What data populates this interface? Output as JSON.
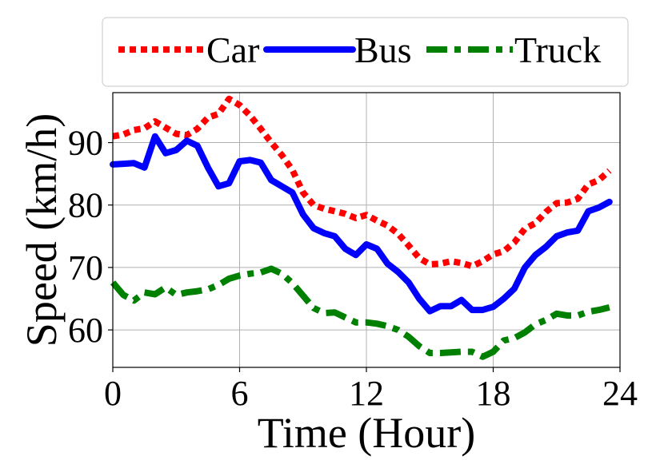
{
  "chart_data": {
    "type": "line",
    "xlabel": "Time (Hour)",
    "ylabel": "Speed (km/h)",
    "xlim": [
      0,
      24
    ],
    "ylim": [
      54,
      98
    ],
    "x_ticks": [
      "0",
      "6",
      "12",
      "18",
      "24"
    ],
    "y_ticks": [
      "60",
      "70",
      "80",
      "90"
    ],
    "grid": true,
    "legend_position": "top",
    "series": [
      {
        "name": "Car",
        "color": "#ff0000",
        "style": "dotted",
        "x": [
          0,
          0.5,
          1,
          1.5,
          2,
          2.5,
          3,
          3.5,
          4,
          4.5,
          5,
          5.5,
          6,
          6.5,
          7,
          7.5,
          8,
          8.5,
          9,
          9.5,
          10,
          10.5,
          11,
          11.5,
          12,
          12.5,
          13,
          13.5,
          14,
          14.5,
          15,
          15.5,
          16,
          16.5,
          17,
          17.5,
          18,
          18.5,
          19,
          19.5,
          20,
          20.5,
          21,
          21.5,
          22,
          22.5,
          23,
          23.5
        ],
        "values": [
          91,
          91.3,
          92,
          92.3,
          93.4,
          92.4,
          91.4,
          91.2,
          92.2,
          94,
          94.6,
          97,
          96,
          94.3,
          92.2,
          90,
          88,
          85.6,
          82,
          80,
          79.4,
          79,
          78.6,
          77.9,
          78.4,
          77.5,
          76.7,
          75.4,
          73.5,
          71.5,
          70.5,
          70.6,
          71,
          70.7,
          70.2,
          71,
          72.1,
          72.6,
          74,
          76.2,
          77.1,
          78.9,
          80.3,
          80.4,
          81,
          83.3,
          84,
          85.5
        ]
      },
      {
        "name": "Bus",
        "color": "#0000ff",
        "style": "solid",
        "x": [
          0,
          0.5,
          1,
          1.5,
          2,
          2.5,
          3,
          3.5,
          4,
          4.5,
          5,
          5.5,
          6,
          6.5,
          7,
          7.5,
          8,
          8.5,
          9,
          9.5,
          10,
          10.5,
          11,
          11.5,
          12,
          12.5,
          13,
          13.5,
          14,
          14.5,
          15,
          15.5,
          16,
          16.5,
          17,
          17.5,
          18,
          18.5,
          19,
          19.5,
          20,
          20.5,
          21,
          21.5,
          22,
          22.5,
          23,
          23.5
        ],
        "values": [
          86.5,
          86.6,
          86.7,
          86,
          91,
          88.3,
          88.8,
          90.3,
          89.5,
          86,
          83,
          83.5,
          87,
          87.2,
          86.8,
          84,
          83,
          82,
          78.5,
          76.3,
          75.5,
          75,
          73,
          72,
          73.7,
          73,
          70.6,
          69.3,
          67.6,
          65,
          63,
          63.8,
          63.8,
          64.8,
          63.2,
          63.2,
          63.7,
          65,
          66.6,
          70,
          72,
          73.3,
          75,
          75.6,
          75.9,
          79,
          79.6,
          80.5
        ]
      },
      {
        "name": "Truck",
        "color": "#008000",
        "style": "dashdot",
        "x": [
          0,
          0.5,
          1,
          1.5,
          2,
          2.5,
          3,
          3.5,
          4,
          4.5,
          5,
          5.5,
          6,
          6.5,
          7,
          7.5,
          8,
          8.5,
          9,
          9.5,
          10,
          10.5,
          11,
          11.5,
          12,
          12.5,
          13,
          13.5,
          14,
          14.5,
          15,
          15.5,
          16,
          16.5,
          17,
          17.5,
          18,
          18.5,
          19,
          19.5,
          20,
          20.5,
          21,
          21.5,
          22,
          22.5,
          23,
          23.5
        ],
        "values": [
          67.6,
          65.6,
          64.7,
          66,
          65.7,
          66.8,
          65.6,
          66,
          66.2,
          66.5,
          67.2,
          68.2,
          68.7,
          69,
          69.2,
          69.8,
          69,
          67.5,
          65.5,
          63.5,
          62.7,
          62.8,
          62,
          61.2,
          61.2,
          61,
          60.6,
          60,
          58.9,
          57.4,
          56.3,
          56.3,
          56.4,
          56.5,
          56.5,
          55.7,
          56.5,
          58.3,
          58.7,
          59.6,
          60.9,
          61.6,
          62.6,
          62.3,
          62.3,
          62.9,
          63.2,
          63.6
        ]
      }
    ]
  }
}
